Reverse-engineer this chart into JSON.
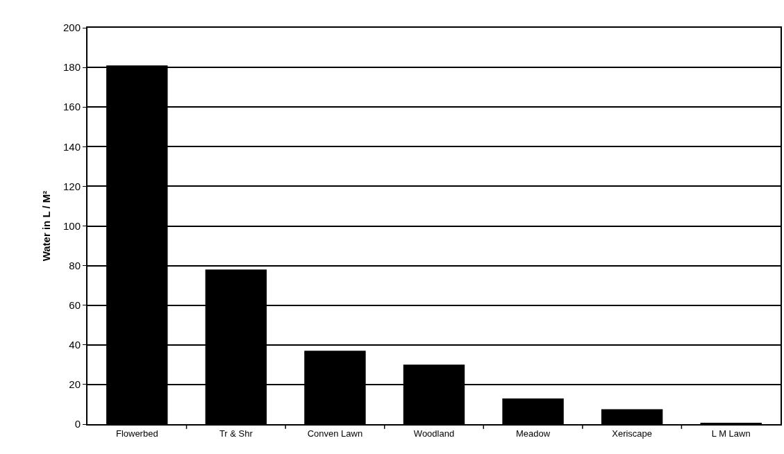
{
  "chart_data": {
    "type": "bar",
    "categories": [
      "Flowerbed",
      "Tr & Shr",
      "Conven Lawn",
      "Woodland",
      "Meadow",
      "Xeriscape",
      "L M Lawn"
    ],
    "values": [
      181,
      78,
      37,
      30,
      13,
      7.5,
      0.5
    ],
    "color": "#000000",
    "ylabel": "Water in L / M²",
    "ylim": [
      0,
      200
    ],
    "yticks": [
      0,
      20,
      40,
      60,
      80,
      100,
      120,
      140,
      160,
      180,
      200
    ],
    "grid": "y"
  }
}
